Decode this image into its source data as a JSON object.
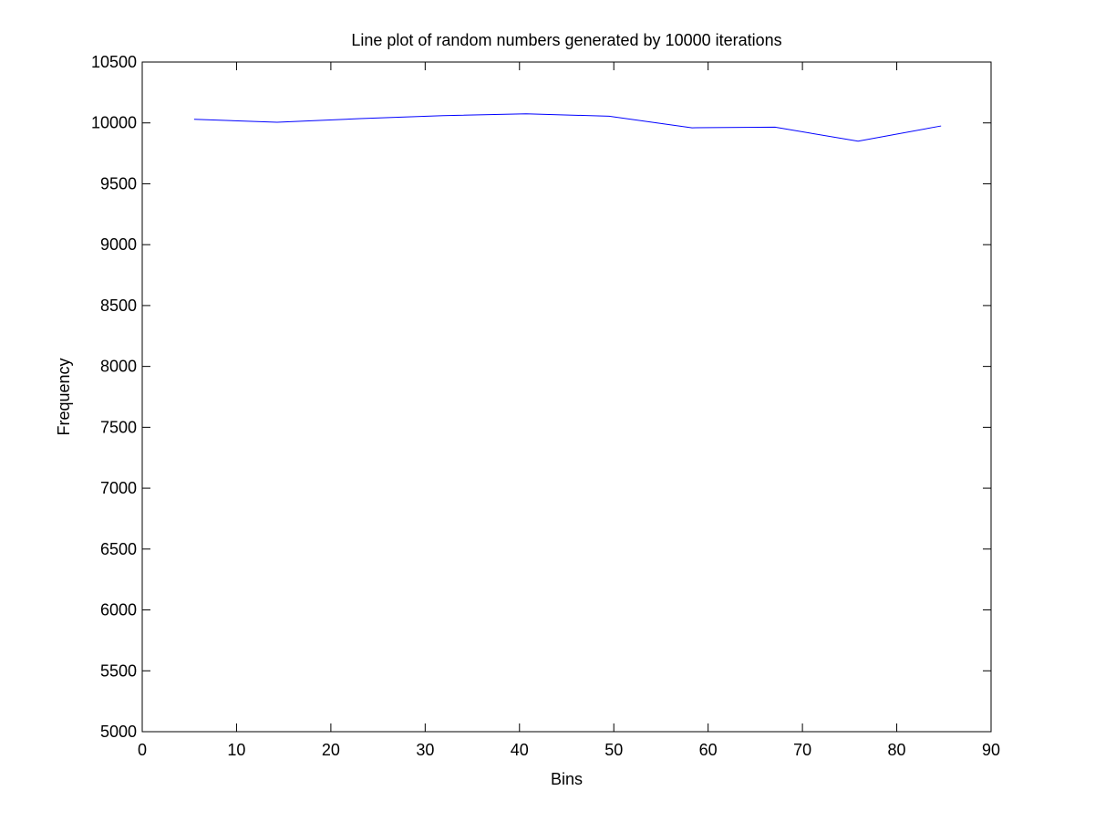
{
  "chart_data": {
    "type": "line",
    "title": "Line plot of random numbers generated by 10000 iterations",
    "xlabel": "Bins",
    "ylabel": "Frequency",
    "xlim": [
      0,
      90
    ],
    "ylim": [
      5000,
      10500
    ],
    "xticks": [
      0,
      10,
      20,
      30,
      40,
      50,
      60,
      70,
      80,
      90
    ],
    "yticks": [
      5000,
      5500,
      6000,
      6500,
      7000,
      7500,
      8000,
      8500,
      9000,
      9500,
      10000,
      10500
    ],
    "grid": false,
    "legend": "none",
    "series": [
      {
        "color": "#0000ff",
        "x": [
          5.5,
          14.3,
          23.1,
          31.9,
          40.7,
          49.5,
          58.3,
          67.1,
          75.9,
          84.7
        ],
        "values": [
          10030,
          10005,
          10035,
          10060,
          10075,
          10055,
          9960,
          9965,
          9850,
          9975
        ]
      }
    ]
  }
}
